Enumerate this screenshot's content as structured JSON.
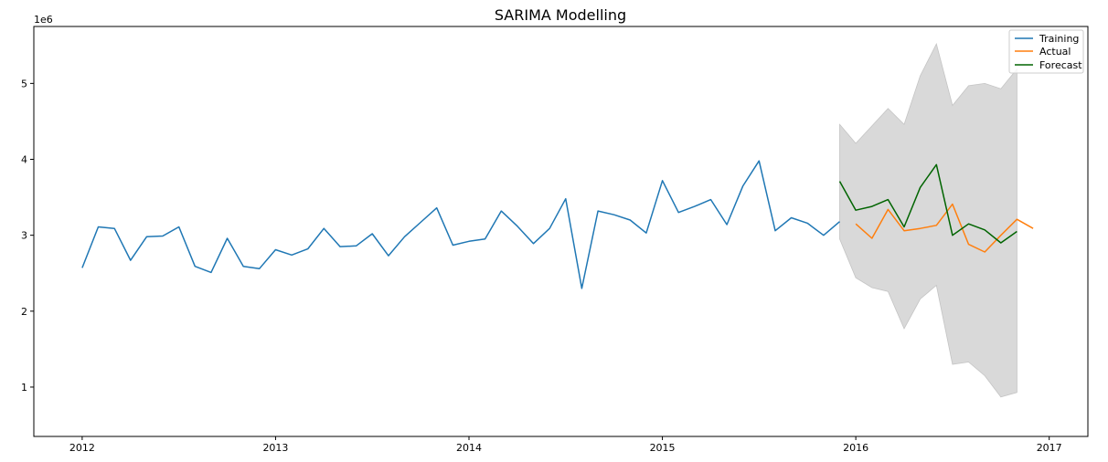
{
  "chart_data": {
    "type": "line",
    "title": "SARIMA Modelling",
    "xlabel": "",
    "ylabel": "",
    "y_scale_label": "1e6",
    "xlim": [
      2011.75,
      2017.2
    ],
    "ylim": [
      0.35,
      5.75
    ],
    "x_ticks": [
      {
        "value": 2012,
        "label": "2012"
      },
      {
        "value": 2013,
        "label": "2013"
      },
      {
        "value": 2014,
        "label": "2014"
      },
      {
        "value": 2015,
        "label": "2015"
      },
      {
        "value": 2016,
        "label": "2016"
      },
      {
        "value": 2017,
        "label": "2017"
      }
    ],
    "y_ticks": [
      {
        "value": 1,
        "label": "1"
      },
      {
        "value": 2,
        "label": "2"
      },
      {
        "value": 3,
        "label": "3"
      },
      {
        "value": 4,
        "label": "4"
      },
      {
        "value": 5,
        "label": "5"
      }
    ],
    "grid": false,
    "legend_position": "top-right",
    "series": [
      {
        "name": "Training",
        "color": "#1f77b4",
        "x": [
          2012.0,
          2012.0833,
          2012.1667,
          2012.25,
          2012.3333,
          2012.4167,
          2012.5,
          2012.5833,
          2012.6667,
          2012.75,
          2012.8333,
          2012.9167,
          2013.0,
          2013.0833,
          2013.1667,
          2013.25,
          2013.3333,
          2013.4167,
          2013.5,
          2013.5833,
          2013.6667,
          2013.75,
          2013.8333,
          2013.9167,
          2014.0,
          2014.0833,
          2014.1667,
          2014.25,
          2014.3333,
          2014.4167,
          2014.5,
          2014.5833,
          2014.6667,
          2014.75,
          2014.8333,
          2014.9167,
          2015.0,
          2015.0833,
          2015.1667,
          2015.25,
          2015.3333,
          2015.4167,
          2015.5,
          2015.5833,
          2015.6667,
          2015.75,
          2015.8333,
          2015.9167
        ],
        "values": [
          2.57,
          3.11,
          3.09,
          2.67,
          2.98,
          2.99,
          3.11,
          2.59,
          2.51,
          2.96,
          2.59,
          2.56,
          2.81,
          2.74,
          2.82,
          3.09,
          2.85,
          2.86,
          3.02,
          2.73,
          2.98,
          3.17,
          3.36,
          2.87,
          2.92,
          2.95,
          3.32,
          3.12,
          2.89,
          3.09,
          3.48,
          2.3,
          3.32,
          3.27,
          3.2,
          3.03,
          3.72,
          3.3,
          3.38,
          3.47,
          3.14,
          3.65,
          3.98,
          3.06,
          3.23,
          3.16,
          3.0,
          3.18
        ]
      },
      {
        "name": "Actual",
        "color": "#ff7f0e",
        "x": [
          2016.0,
          2016.0833,
          2016.1667,
          2016.25,
          2016.3333,
          2016.4167,
          2016.5,
          2016.5833,
          2016.6667,
          2016.75,
          2016.8333,
          2016.9167
        ],
        "values": [
          3.15,
          2.96,
          3.34,
          3.06,
          3.09,
          3.13,
          3.41,
          2.88,
          2.78,
          3.0,
          3.21,
          3.09
        ]
      },
      {
        "name": "Forecast",
        "color": "#006400",
        "x": [
          2015.9167,
          2016.0,
          2016.0833,
          2016.1667,
          2016.25,
          2016.3333,
          2016.4167,
          2016.5,
          2016.5833,
          2016.6667,
          2016.75,
          2016.8333
        ],
        "values": [
          3.71,
          3.33,
          3.38,
          3.47,
          3.11,
          3.63,
          3.93,
          3.0,
          3.15,
          3.07,
          2.9,
          3.05
        ]
      }
    ],
    "confidence_band": {
      "color": "#d9d9d9",
      "x": [
        2015.9167,
        2016.0,
        2016.0833,
        2016.1667,
        2016.25,
        2016.3333,
        2016.4167,
        2016.5,
        2016.5833,
        2016.6667,
        2016.75,
        2016.8333
      ],
      "upper": [
        4.46,
        4.21,
        4.44,
        4.67,
        4.46,
        5.1,
        5.52,
        4.71,
        4.97,
        5.0,
        4.93,
        5.19
      ],
      "lower": [
        2.95,
        2.44,
        2.31,
        2.26,
        1.77,
        2.16,
        2.34,
        1.3,
        1.33,
        1.15,
        0.87,
        0.93
      ]
    }
  }
}
